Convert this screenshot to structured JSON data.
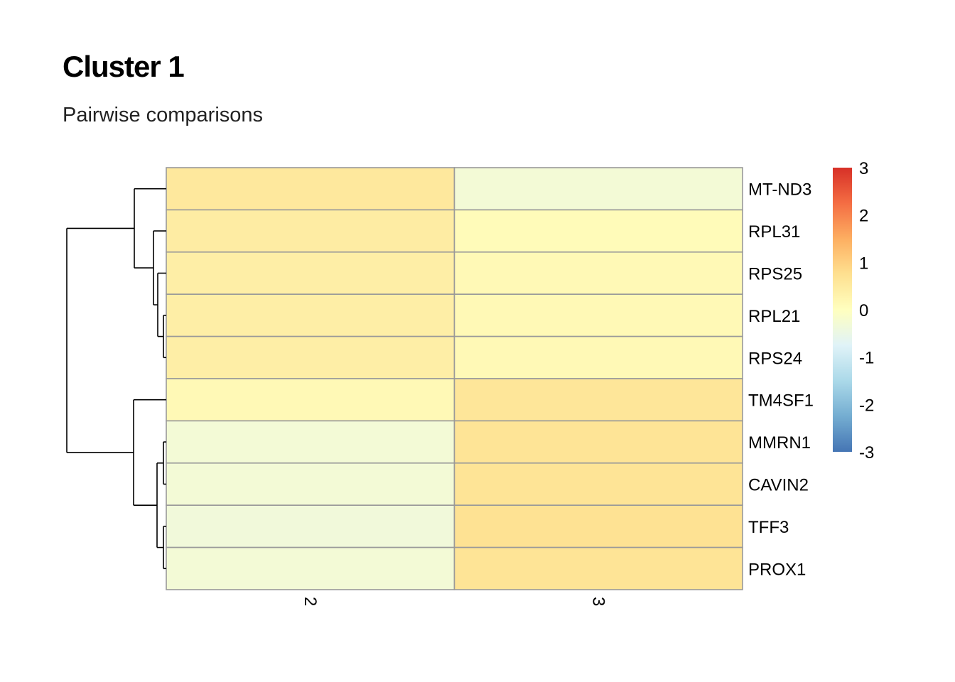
{
  "title": "Cluster 1",
  "subtitle": "Pairwise comparisons",
  "chart_data": {
    "type": "heatmap",
    "columns": [
      "2",
      "3"
    ],
    "rows": [
      "MT-ND3",
      "RPL31",
      "RPS25",
      "RPL21",
      "RPS24",
      "TM4SF1",
      "MMRN1",
      "CAVIN2",
      "TFF3",
      "PROX1"
    ],
    "values": [
      [
        0.55,
        -0.3
      ],
      [
        0.45,
        0.1
      ],
      [
        0.4,
        0.15
      ],
      [
        0.4,
        0.15
      ],
      [
        0.4,
        0.15
      ],
      [
        0.15,
        0.6
      ],
      [
        -0.3,
        0.65
      ],
      [
        -0.3,
        0.65
      ],
      [
        -0.35,
        0.7
      ],
      [
        -0.3,
        0.65
      ]
    ],
    "colorbar": {
      "min": -3,
      "max": 3,
      "ticks": [
        "3",
        "2",
        "1",
        "0",
        "-1",
        "-2",
        "-3"
      ],
      "colors": [
        "#D73027",
        "#F46D43",
        "#FDAE61",
        "#FEE090",
        "#FFFFBF",
        "#E0F3F8",
        "#ABD9E9",
        "#74ADD1",
        "#4575B4"
      ]
    },
    "row_dendrogram": true,
    "cell_border_color": "#999999"
  }
}
